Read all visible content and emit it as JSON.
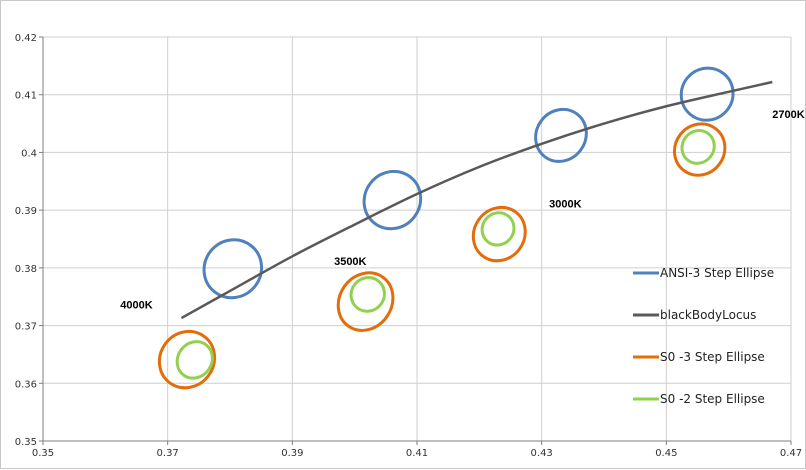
{
  "chart_data": {
    "type": "scatter",
    "title": "",
    "xlabel": "",
    "ylabel": "",
    "xlim": [
      0.35,
      0.47
    ],
    "ylim": [
      0.35,
      0.42
    ],
    "grid": true,
    "legend_position": "right",
    "x_ticks": [
      "0.35",
      "0.37",
      "0.39",
      "0.41",
      "0.43",
      "0.45",
      "0.47"
    ],
    "y_ticks": [
      "0.35",
      "0.36",
      "0.37",
      "0.38",
      "0.39",
      "0.4",
      "0.41",
      "0.42"
    ],
    "series": [
      {
        "name": "ANSI-3 Step Ellipse",
        "color": "#4f81bd",
        "ellipses": [
          {
            "cct": "4000K",
            "x_min": 0.3746,
            "x_max": 0.3863,
            "y_min": 0.3721,
            "y_max": 0.3876
          },
          {
            "cct": "3500K",
            "x_min": 0.4004,
            "x_max": 0.4117,
            "y_min": 0.384,
            "y_max": 0.3995
          },
          {
            "cct": "3000K",
            "x_min": 0.4282,
            "x_max": 0.438,
            "y_min": 0.3958,
            "y_max": 0.4101
          },
          {
            "cct": "2700K",
            "x_min": 0.4512,
            "x_max": 0.4619,
            "y_min": 0.4032,
            "y_max": 0.417
          }
        ]
      },
      {
        "name": "blackBodyLocus",
        "color": "#595959",
        "x": [
          0.3722,
          0.38,
          0.39,
          0.4,
          0.41,
          0.42,
          0.43,
          0.44,
          0.45,
          0.46,
          0.467
        ],
        "y": [
          0.3713,
          0.376,
          0.382,
          0.3875,
          0.3928,
          0.3975,
          0.4015,
          0.405,
          0.408,
          0.4105,
          0.4122
        ]
      },
      {
        "name": "S0 -3 Step Ellipse",
        "color": "#e46c0a",
        "ellipses": [
          {
            "x_min": 0.3677,
            "x_max": 0.3785,
            "y_min": 0.3564,
            "y_max": 0.3718
          },
          {
            "x_min": 0.3967,
            "x_max": 0.4068,
            "y_min": 0.3661,
            "y_max": 0.3822
          },
          {
            "x_min": 0.4182,
            "x_max": 0.4282,
            "y_min": 0.3785,
            "y_max": 0.3932
          },
          {
            "x_min": 0.4504,
            "x_max": 0.4603,
            "y_min": 0.3935,
            "y_max": 0.4075
          }
        ]
      },
      {
        "name": "S0 -2 Step Ellipse",
        "color": "#92d050",
        "ellipses": [
          {
            "x_min": 0.371,
            "x_max": 0.3777,
            "y_min": 0.359,
            "y_max": 0.3691
          },
          {
            "x_min": 0.3987,
            "x_max": 0.4055,
            "y_min": 0.3709,
            "y_max": 0.3799
          },
          {
            "x_min": 0.4198,
            "x_max": 0.4262,
            "y_min": 0.3824,
            "y_max": 0.3911
          },
          {
            "x_min": 0.4519,
            "x_max": 0.4583,
            "y_min": 0.3965,
            "y_max": 0.4054
          }
        ]
      }
    ],
    "annotations": [
      {
        "text": "4000K",
        "x": 0.365,
        "y": 0.373
      },
      {
        "text": "3500K",
        "x": 0.3993,
        "y": 0.3805
      },
      {
        "text": "3000K",
        "x": 0.4338,
        "y": 0.3905
      },
      {
        "text": "2700K",
        "x": 0.4696,
        "y": 0.406
      }
    ]
  }
}
